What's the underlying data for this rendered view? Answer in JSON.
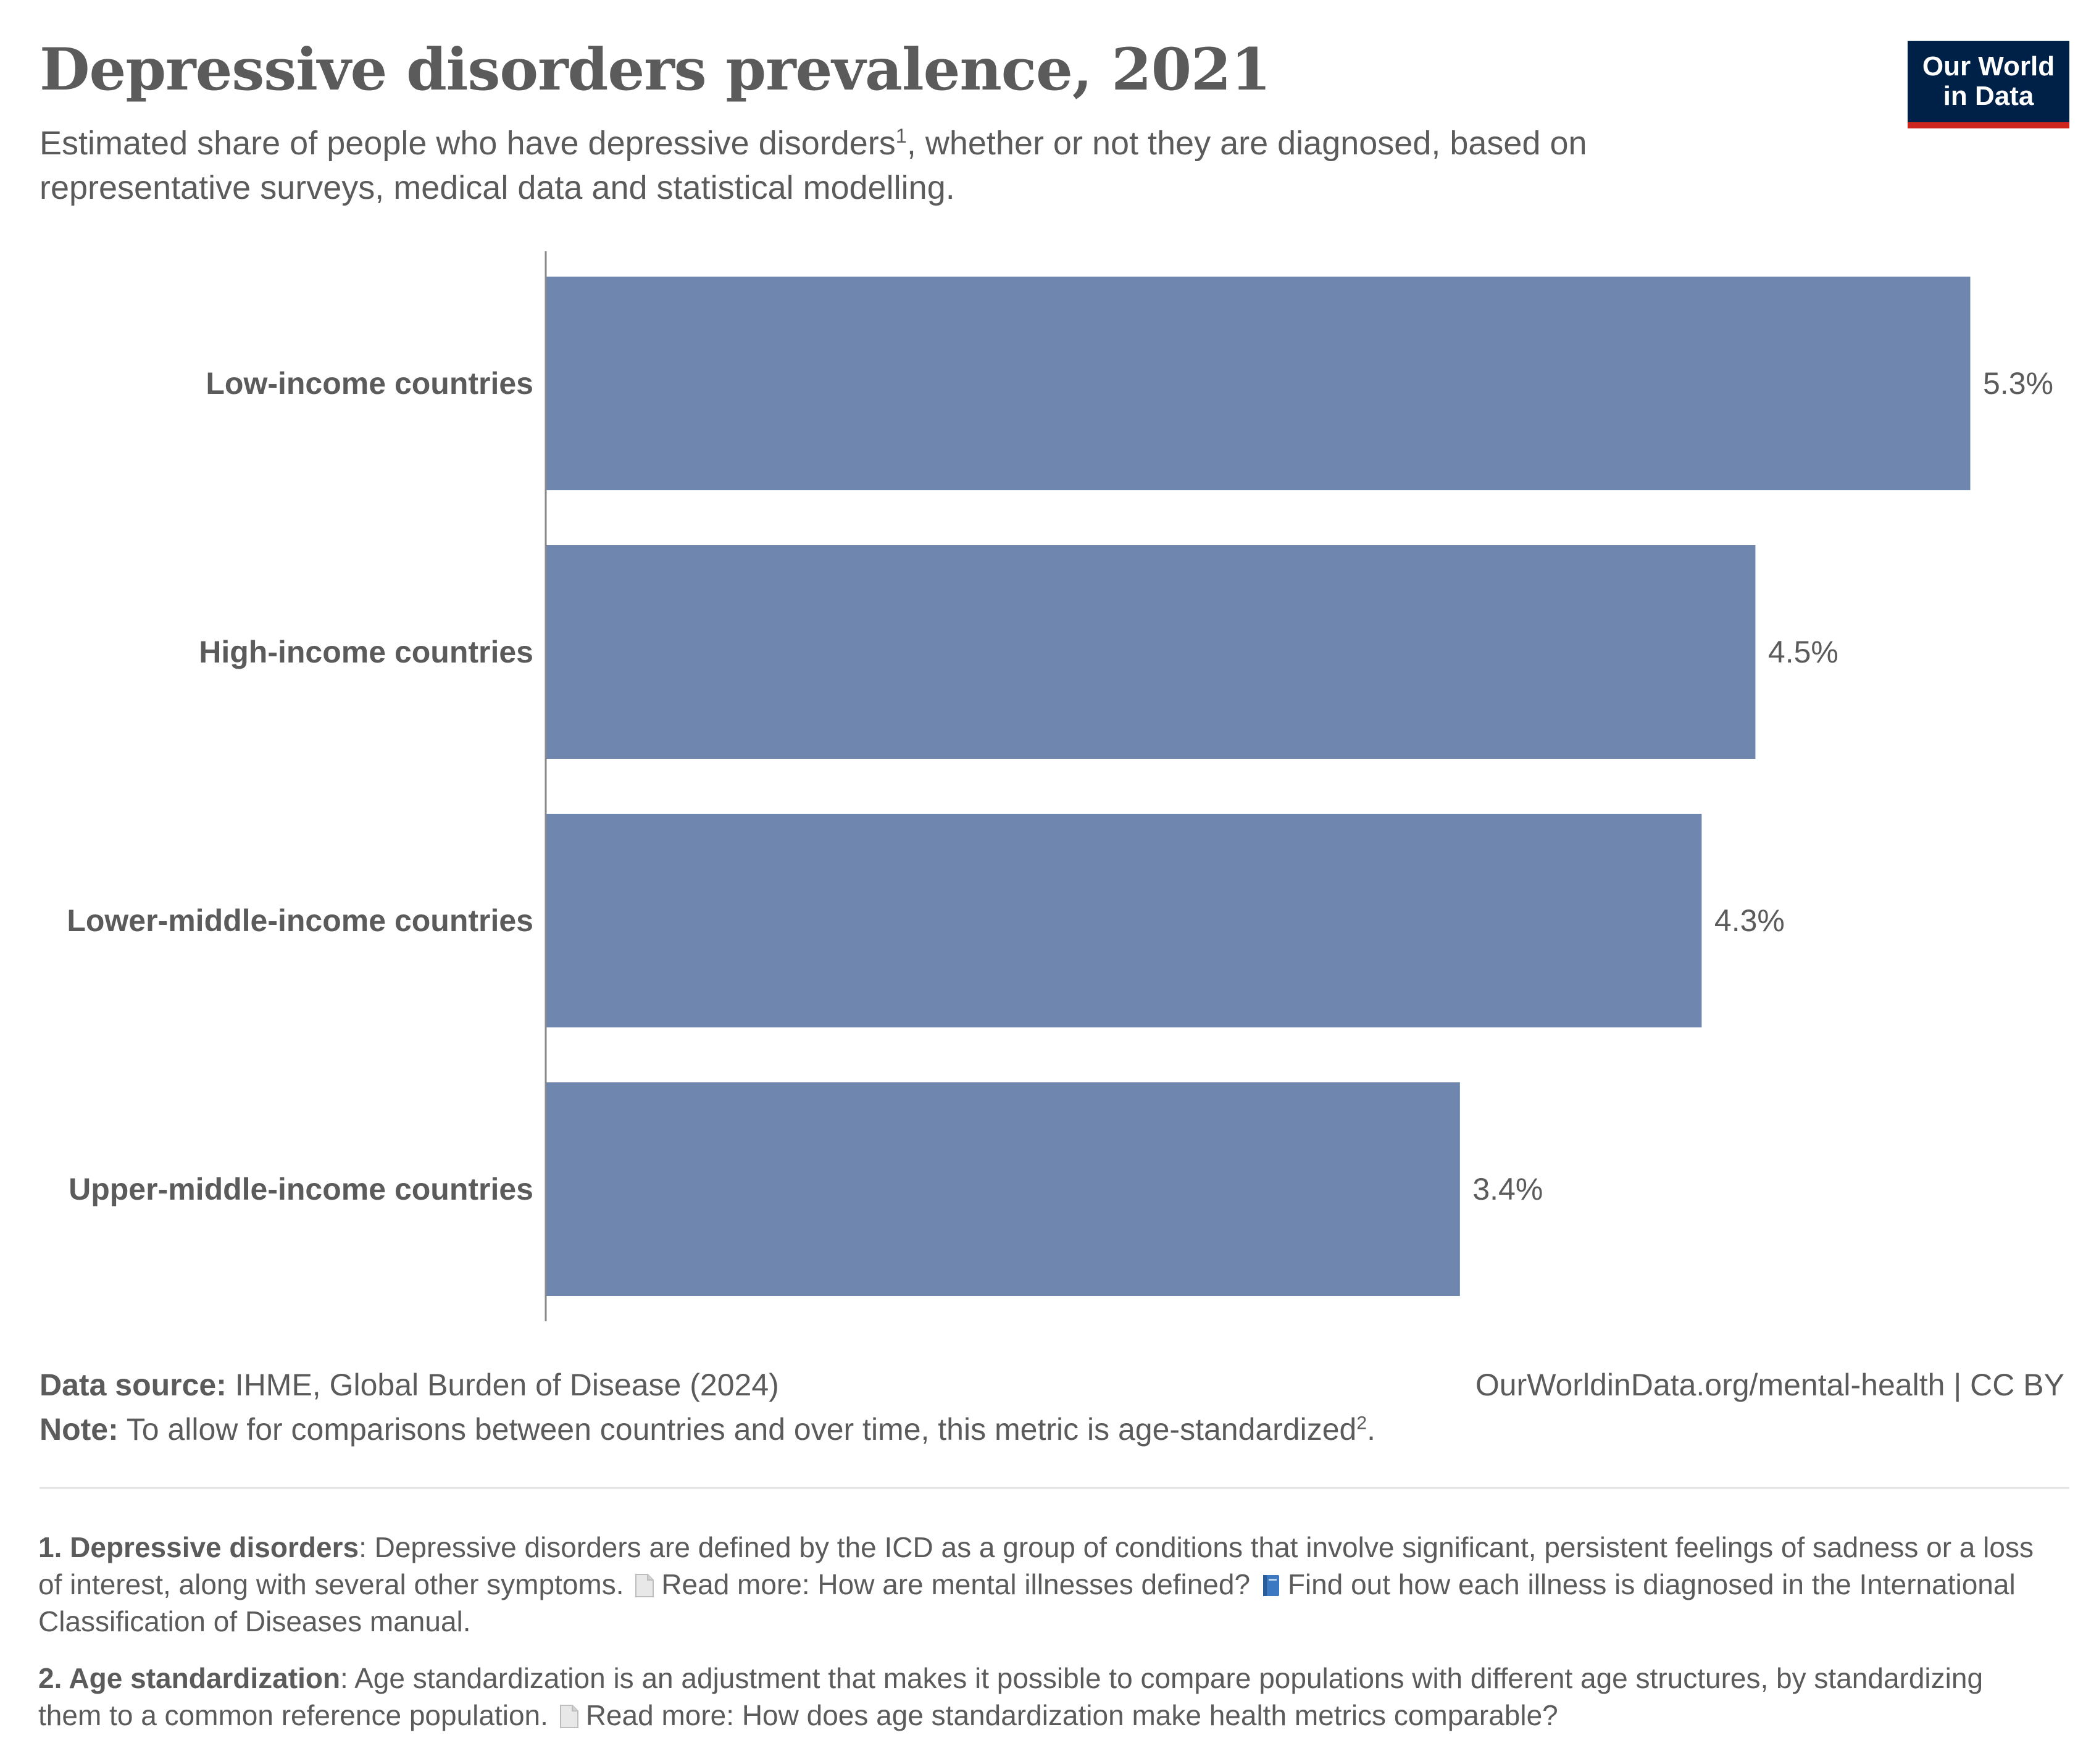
{
  "header": {
    "title": "Depressive disorders prevalence, 2021",
    "subtitle_before": "Estimated share of people who have depressive disorders",
    "subtitle_sup": "1",
    "subtitle_after": ", whether or not they are diagnosed, based on representative surveys, medical data and statistical modelling."
  },
  "logo": {
    "line1": "Our World",
    "line2": "in Data",
    "bg_color": "#002147",
    "accent_color": "#ce261e"
  },
  "chart_data": {
    "type": "bar",
    "orientation": "horizontal",
    "categories": [
      "Low-income countries",
      "High-income countries",
      "Lower-middle-income countries",
      "Upper-middle-income countries"
    ],
    "values": [
      5.3,
      4.5,
      4.3,
      3.4
    ],
    "value_labels": [
      "5.3%",
      "4.5%",
      "4.3%",
      "3.4%"
    ],
    "unit": "%",
    "bar_color": "#6f87ae",
    "xlim": [
      0,
      5.3
    ]
  },
  "footer": {
    "source_label": "Data source:",
    "source_text": "IHME, Global Burden of Disease (2024)",
    "url_text": "OurWorldinData.org/mental-health | CC BY",
    "note_label": "Note:",
    "note_text": "To allow for comparisons between countries and over time, this metric is age-standardized",
    "note_sup": "2",
    "note_end": "."
  },
  "footnotes": {
    "fn1_label": "1. Depressive disorders",
    "fn1_text": ": Depressive disorders are defined by the ICD as a group of conditions that involve significant, persistent feelings of sadness or a loss of interest, along with several other symptoms.",
    "fn1_link1": "Read more: How are mental illnesses defined?",
    "fn1_link2": "Find out how each illness is diagnosed in the International Classification of Diseases manual.",
    "fn2_label": "2. Age standardization",
    "fn2_text": ": Age standardization is an adjustment that makes it possible to compare populations with different age structures, by standardizing them to a common reference population.",
    "fn2_link": "Read more: How does age standardization make health metrics comparable?"
  }
}
